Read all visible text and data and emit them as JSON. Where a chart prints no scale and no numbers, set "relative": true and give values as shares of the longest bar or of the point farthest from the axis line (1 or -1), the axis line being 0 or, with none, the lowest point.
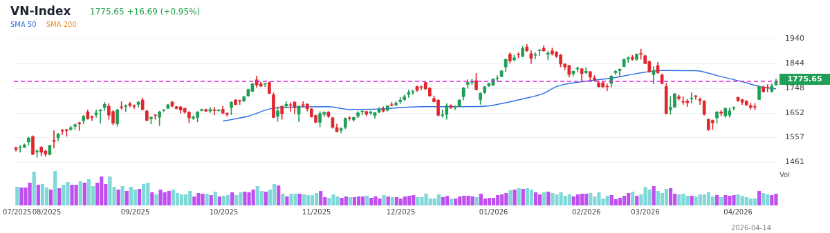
{
  "chart_data": [
    {
      "type": "candlestick",
      "title": "VN-Index",
      "subtitle": "1775.65 +16.69 (+0.95%)",
      "legend": "top left",
      "grid": "y",
      "tick_labels": "y",
      "categories": [
        null,
        null,
        null,
        null,
        null,
        null,
        null,
        null,
        null,
        null,
        null,
        null,
        null,
        null,
        null,
        null,
        null,
        null,
        null,
        null,
        null,
        null,
        null,
        null,
        null,
        null,
        null,
        null,
        null,
        null,
        null,
        null,
        null,
        null,
        null,
        null,
        null,
        null,
        null,
        null,
        null,
        null,
        null,
        null,
        null,
        null,
        null,
        null,
        null,
        null,
        null,
        null,
        null,
        null,
        null,
        null,
        null,
        null,
        null,
        null,
        null,
        null,
        null,
        null,
        null,
        null,
        null,
        null,
        null,
        null,
        null,
        null,
        null,
        null,
        null,
        null,
        null,
        null,
        null,
        null,
        null,
        null,
        null,
        null,
        null,
        null,
        null,
        null,
        null,
        null,
        null,
        null,
        null,
        null,
        null,
        null,
        null,
        null,
        null,
        null,
        null,
        null,
        null,
        null,
        null,
        null,
        null,
        null,
        null,
        null,
        null,
        null,
        null,
        null,
        null,
        null,
        null,
        null,
        null,
        null,
        null,
        null,
        null,
        null,
        null,
        null,
        null,
        null,
        null,
        null,
        null,
        null,
        null,
        null,
        null,
        null,
        null,
        null,
        null,
        null,
        null,
        null,
        null,
        null,
        null,
        null,
        null,
        null,
        null,
        null,
        null,
        null,
        null,
        null,
        null,
        null,
        null,
        null,
        null,
        null,
        null,
        null,
        null,
        null,
        null,
        null,
        null,
        null,
        null,
        null,
        null,
        null,
        null,
        null,
        null,
        null,
        null,
        null,
        null,
        null,
        null
      ],
      "colors": [
        "#e0272d",
        "#1f9e55",
        "#1f9e55",
        "#1f9e55",
        "#e0272d",
        "#1f9e55",
        "#e0272d",
        "#e0272d",
        "#1f9e55",
        "#e0272d",
        "#1f9e55",
        "#e0272d",
        "#e0272d",
        "#1f9e55",
        "#1f9e55",
        "#e0272d",
        "#1f9e55",
        "#e0272d",
        "#e0272d",
        "#1f9e55",
        "#1f9e55",
        "#1f9e55",
        "#e0272d",
        "#e0272d",
        "#1f9e55",
        "#e0272d",
        "#1f9e55",
        "#e0272d",
        "#e0272d",
        "#1f9e55",
        "#e0272d",
        "#e0272d",
        "#1f9e55",
        "#e0272d",
        "#1f9e55",
        "#1f9e55",
        "#1f9e55",
        "#e0272d",
        "#e0272d",
        "#e0272d",
        "#e0272d",
        "#e0272d",
        "#1f9e55",
        "#1f9e55",
        "#1f9e55",
        "#e0272d",
        "#1f9e55",
        "#e0272d",
        "#1f9e55",
        "#e0272d",
        "#e0272d",
        "#1f9e55",
        "#e0272d",
        "#e0272d",
        "#1f9e55",
        "#1f9e55",
        "#1f9e55",
        "#e0272d",
        "#e0272d",
        "#1f9e55",
        "#e0272d",
        "#e0272d",
        "#1f9e55",
        "#e0272d",
        "#1f9e55",
        "#e0272d",
        "#e0272d",
        "#1f9e55",
        "#e0272d",
        "#e0272d",
        "#e0272d",
        "#e0272d",
        "#1f9e55",
        "#1f9e55",
        "#e0272d",
        "#e0272d",
        "#e0272d",
        "#1f9e55",
        "#1f9e55",
        "#e0272d",
        "#1f9e55",
        "#1f9e55",
        "#1f9e55",
        "#e0272d",
        "#1f9e55",
        "#1f9e55",
        "#1f9e55",
        "#e0272d",
        "#1f9e55",
        "#e0272d",
        "#1f9e55",
        "#1f9e55",
        "#1f9e55",
        "#1f9e55",
        "#1f9e55",
        "#e0272d",
        "#e0272d",
        "#e0272d",
        "#e0272d",
        "#e0272d",
        "#e0272d",
        "#1f9e55",
        "#1f9e55",
        "#e0272d",
        "#1f9e55",
        "#1f9e55",
        "#1f9e55",
        "#1f9e55",
        "#1f9e55",
        "#e0272d",
        "#1f9e55",
        "#1f9e55",
        "#1f9e55",
        "#1f9e55",
        "#1f9e55",
        "#1f9e55",
        "#1f9e55",
        "#e0272d",
        "#1f9e55",
        "#e0272d",
        "#1f9e55",
        "#e0272d",
        "#e0272d",
        "#1f9e55",
        "#1f9e55",
        "#e0272d",
        "#1f9e55",
        "#e0272d",
        "#e0272d",
        "#e0272d",
        "#e0272d",
        "#e0272d",
        "#1f9e55",
        "#1f9e55",
        "#e0272d",
        "#1f9e55",
        "#e0272d",
        "#e0272d",
        "#e0272d",
        "#e0272d",
        "#e0272d",
        "#1f9e55",
        "#1f9e55",
        "#1f9e55",
        "#1f9e55",
        "#1f9e55",
        "#e0272d",
        "#1f9e55",
        "#e0272d",
        "#e0272d",
        "#e0272d",
        "#1f9e55",
        "#e0272d",
        "#e0272d",
        "#e0272d",
        "#1f9e55",
        "#1f9e55",
        "#e0272d",
        "#e0272d",
        "#e0272d",
        "#1f9e55",
        "#e0272d",
        "#e0272d",
        "#e0272d",
        "#e0272d",
        "#e0272d",
        "#1f9e55",
        "#e0272d",
        "#1f9e55",
        "#1f9e55",
        "#1f9e55",
        "#e0272d",
        "#e0272d",
        "#e0272d",
        "#e0272d",
        "#e0272d",
        "#1f9e55",
        "#e0272d",
        "#e0272d",
        "#1f9e55",
        "#1f9e55"
      ],
      "ohlc": [
        [
          1517,
          1521,
          1504,
          1511
        ],
        [
          1517,
          1527,
          1500,
          1520
        ],
        [
          1520,
          1533,
          1517,
          1529
        ],
        [
          1540,
          1559,
          1528,
          1555
        ],
        [
          1561,
          1564,
          1490,
          1492
        ],
        [
          1501,
          1511,
          1480,
          1505
        ],
        [
          1520,
          1522,
          1486,
          1500
        ],
        [
          1505,
          1508,
          1484,
          1493
        ],
        [
          1491,
          1528,
          1489,
          1526
        ],
        [
          1546,
          1584,
          1516,
          1542
        ],
        [
          1557,
          1574,
          1545,
          1571
        ],
        [
          1586,
          1589,
          1569,
          1582
        ],
        [
          1588,
          1590,
          1562,
          1584
        ],
        [
          1589,
          1601,
          1584,
          1596
        ],
        [
          1601,
          1610,
          1588,
          1607
        ],
        [
          1614,
          1618,
          1584,
          1610
        ],
        [
          1623,
          1644,
          1610,
          1640
        ],
        [
          1657,
          1665,
          1628,
          1630
        ],
        [
          1638,
          1642,
          1623,
          1635
        ],
        [
          1646,
          1665,
          1635,
          1653
        ],
        [
          1661,
          1666,
          1613,
          1664
        ],
        [
          1674,
          1694,
          1662,
          1686
        ],
        [
          1679,
          1689,
          1628,
          1644
        ],
        [
          1658,
          1662,
          1606,
          1613
        ],
        [
          1610,
          1668,
          1601,
          1665
        ],
        [
          1677,
          1697,
          1666,
          1673
        ],
        [
          1678,
          1685,
          1658,
          1681
        ],
        [
          1688,
          1694,
          1676,
          1682
        ],
        [
          1681,
          1685,
          1669,
          1678
        ],
        [
          1686,
          1697,
          1674,
          1695
        ],
        [
          1703,
          1711,
          1663,
          1666
        ],
        [
          1660,
          1665,
          1622,
          1624
        ],
        [
          1630,
          1638,
          1610,
          1636
        ],
        [
          1644,
          1646,
          1628,
          1643
        ],
        [
          1636,
          1660,
          1603,
          1657
        ],
        [
          1663,
          1667,
          1657,
          1665
        ],
        [
          1671,
          1687,
          1668,
          1684
        ],
        [
          1695,
          1698,
          1676,
          1679
        ],
        [
          1677,
          1679,
          1668,
          1670
        ],
        [
          1676,
          1678,
          1652,
          1664
        ],
        [
          1670,
          1672,
          1651,
          1656
        ],
        [
          1656,
          1658,
          1614,
          1634
        ],
        [
          1632,
          1642,
          1627,
          1636
        ],
        [
          1635,
          1659,
          1618,
          1657
        ],
        [
          1662,
          1668,
          1660,
          1666
        ],
        [
          1666,
          1668,
          1657,
          1660
        ],
        [
          1660,
          1675,
          1654,
          1666
        ],
        [
          1665,
          1675,
          1645,
          1662
        ],
        [
          1661,
          1666,
          1659,
          1664
        ],
        [
          1667,
          1679,
          1650,
          1652
        ],
        [
          1652,
          1653,
          1639,
          1647
        ],
        [
          1673,
          1697,
          1645,
          1695
        ],
        [
          1703,
          1705,
          1684,
          1685
        ],
        [
          1701,
          1703,
          1685,
          1699
        ],
        [
          1699,
          1718,
          1697,
          1716
        ],
        [
          1719,
          1746,
          1717,
          1744
        ],
        [
          1737,
          1768,
          1735,
          1766
        ],
        [
          1781,
          1796,
          1752,
          1761
        ],
        [
          1766,
          1773,
          1754,
          1757
        ],
        [
          1765,
          1769,
          1754,
          1767
        ],
        [
          1771,
          1773,
          1727,
          1729
        ],
        [
          1723,
          1731,
          1634,
          1635
        ],
        [
          1640,
          1677,
          1620,
          1661
        ],
        [
          1679,
          1681,
          1628,
          1650
        ],
        [
          1679,
          1697,
          1671,
          1686
        ],
        [
          1685,
          1693,
          1658,
          1682
        ],
        [
          1695,
          1697,
          1650,
          1673
        ],
        [
          1648,
          1681,
          1619,
          1679
        ],
        [
          1685,
          1697,
          1675,
          1681
        ],
        [
          1687,
          1689,
          1660,
          1669
        ],
        [
          1668,
          1670,
          1636,
          1638
        ],
        [
          1643,
          1645,
          1614,
          1616
        ],
        [
          1616,
          1658,
          1598,
          1650
        ],
        [
          1647,
          1658,
          1639,
          1655
        ],
        [
          1657,
          1658,
          1635,
          1640
        ],
        [
          1634,
          1636,
          1593,
          1597
        ],
        [
          1596,
          1610,
          1578,
          1580
        ],
        [
          1585,
          1596,
          1575,
          1592
        ],
        [
          1597,
          1634,
          1591,
          1631
        ],
        [
          1632,
          1639,
          1624,
          1631
        ],
        [
          1626,
          1637,
          1620,
          1635
        ],
        [
          1640,
          1658,
          1634,
          1653
        ],
        [
          1657,
          1661,
          1645,
          1660
        ],
        [
          1658,
          1660,
          1642,
          1648
        ],
        [
          1652,
          1660,
          1647,
          1656
        ],
        [
          1643,
          1655,
          1632,
          1654
        ],
        [
          1656,
          1674,
          1653,
          1666
        ],
        [
          1667,
          1677,
          1656,
          1660
        ],
        [
          1663,
          1682,
          1660,
          1680
        ],
        [
          1685,
          1695,
          1679,
          1682
        ],
        [
          1683,
          1697,
          1681,
          1691
        ],
        [
          1697,
          1713,
          1689,
          1702
        ],
        [
          1705,
          1723,
          1700,
          1716
        ],
        [
          1725,
          1742,
          1713,
          1732
        ],
        [
          1733,
          1742,
          1724,
          1735
        ],
        [
          1755,
          1758,
          1736,
          1741
        ],
        [
          1754,
          1758,
          1742,
          1752
        ],
        [
          1771,
          1774,
          1743,
          1746
        ],
        [
          1749,
          1752,
          1717,
          1719
        ],
        [
          1709,
          1719,
          1695,
          1697
        ],
        [
          1702,
          1705,
          1640,
          1644
        ],
        [
          1643,
          1665,
          1636,
          1644
        ],
        [
          1647,
          1689,
          1628,
          1681
        ],
        [
          1681,
          1685,
          1670,
          1673
        ],
        [
          1675,
          1681,
          1665,
          1677
        ],
        [
          1678,
          1705,
          1676,
          1703
        ],
        [
          1716,
          1752,
          1703,
          1750
        ],
        [
          1764,
          1782,
          1749,
          1771
        ],
        [
          1772,
          1784,
          1763,
          1775
        ],
        [
          1778,
          1806,
          1742,
          1743
        ],
        [
          1705,
          1732,
          1686,
          1729
        ],
        [
          1732,
          1756,
          1728,
          1754
        ],
        [
          1759,
          1769,
          1754,
          1767
        ],
        [
          1760,
          1786,
          1759,
          1784
        ],
        [
          1786,
          1798,
          1774,
          1788
        ],
        [
          1794,
          1818,
          1793,
          1816
        ],
        [
          1831,
          1863,
          1814,
          1861
        ],
        [
          1881,
          1887,
          1847,
          1855
        ],
        [
          1859,
          1877,
          1855,
          1867
        ],
        [
          1880,
          1887,
          1867,
          1878
        ],
        [
          1873,
          1912,
          1870,
          1904
        ],
        [
          1909,
          1919,
          1891,
          1894
        ],
        [
          1883,
          1895,
          1844,
          1865
        ],
        [
          1877,
          1887,
          1863,
          1879
        ],
        [
          1895,
          1900,
          1875,
          1897
        ],
        [
          1904,
          1914,
          1891,
          1894
        ],
        [
          1880,
          1893,
          1859,
          1885
        ],
        [
          1894,
          1905,
          1877,
          1883
        ],
        [
          1889,
          1892,
          1868,
          1873
        ],
        [
          1878,
          1881,
          1831,
          1843
        ],
        [
          1843,
          1845,
          1820,
          1831
        ],
        [
          1837,
          1839,
          1792,
          1802
        ],
        [
          1805,
          1816,
          1796,
          1814.5
        ],
        [
          1823,
          1832,
          1812,
          1827
        ],
        [
          1824,
          1826,
          1776,
          1806
        ],
        [
          1809,
          1828,
          1805,
          1814.5
        ],
        [
          1813,
          1815,
          1781,
          1792
        ],
        [
          1789,
          1798,
          1776,
          1782
        ],
        [
          1770,
          1778,
          1752,
          1755
        ],
        [
          1770,
          1772,
          1750,
          1754
        ],
        [
          1755,
          1766,
          1739,
          1754
        ],
        [
          1767,
          1798,
          1752,
          1796
        ],
        [
          1809,
          1818,
          1802,
          1814.5
        ],
        [
          1817,
          1825,
          1794,
          1823
        ],
        [
          1833,
          1863,
          1831,
          1861
        ],
        [
          1863,
          1871,
          1849,
          1867
        ],
        [
          1869,
          1877,
          1857,
          1861
        ],
        [
          1861,
          1883,
          1857,
          1881
        ],
        [
          1883,
          1901,
          1861,
          1881
        ],
        [
          1875,
          1877,
          1843,
          1845
        ],
        [
          1853,
          1855,
          1810,
          1813
        ],
        [
          1802,
          1833,
          1766,
          1817
        ],
        [
          1836,
          1849,
          1806,
          1809
        ],
        [
          1800,
          1805,
          1765,
          1767
        ],
        [
          1755,
          1768,
          1648,
          1651
        ],
        [
          1665,
          1717,
          1648,
          1675
        ],
        [
          1675,
          1729,
          1674,
          1727
        ],
        [
          1716,
          1723,
          1702,
          1709
        ],
        [
          1697,
          1716,
          1686,
          1695
        ],
        [
          1699,
          1705,
          1678,
          1693
        ],
        [
          1708,
          1732,
          1691,
          1709
        ],
        [
          1719,
          1721,
          1705,
          1716
        ],
        [
          1705,
          1712,
          1685,
          1701
        ],
        [
          1699,
          1701,
          1644,
          1647
        ],
        [
          1628,
          1630,
          1584,
          1588
        ],
        [
          1624,
          1626,
          1589,
          1614
        ],
        [
          1634,
          1659,
          1612,
          1657
        ],
        [
          1657,
          1663,
          1642,
          1652
        ],
        [
          1642,
          1673,
          1636,
          1671
        ],
        [
          1644,
          1673,
          1636,
          1661
        ],
        [
          1671,
          1677,
          1663,
          1674
        ],
        [
          1713,
          1715,
          1697,
          1701
        ],
        [
          1704,
          1706,
          1685,
          1695
        ],
        [
          1699,
          1701,
          1681,
          1683
        ],
        [
          1681,
          1691,
          1667,
          1674
        ],
        [
          1677,
          1689,
          1665,
          1675
        ],
        [
          1705,
          1757,
          1704,
          1755
        ],
        [
          1754,
          1758,
          1733.5,
          1735
        ],
        [
          1752,
          1763,
          1735,
          1750
        ],
        [
          1737,
          1766,
          1732,
          1757
        ],
        [
          1762,
          1784,
          1758,
          1775.65
        ]
      ],
      "series": [
        {
          "name": "SMA 50",
          "type": "line",
          "color": "#2f6fe4",
          "values": [
            null,
            null,
            null,
            null,
            null,
            null,
            null,
            null,
            null,
            null,
            null,
            null,
            null,
            null,
            null,
            null,
            null,
            null,
            null,
            null,
            null,
            null,
            null,
            null,
            null,
            null,
            null,
            null,
            null,
            null,
            null,
            null,
            null,
            null,
            null,
            null,
            null,
            null,
            null,
            null,
            null,
            null,
            null,
            null,
            null,
            null,
            null,
            null,
            null,
            1621,
            null,
            null,
            null,
            null,
            null,
            1640,
            null,
            null,
            null,
            null,
            1668,
            null,
            null,
            1674,
            null,
            null,
            null,
            null,
            null,
            null,
            null,
            null,
            null,
            null,
            1677,
            null,
            null,
            null,
            null,
            1666,
            null,
            null,
            null,
            null,
            null,
            null,
            1668,
            null,
            null,
            null,
            null,
            null,
            null,
            null,
            null,
            null,
            1677,
            null,
            null,
            null,
            null,
            null,
            null,
            null,
            null,
            null,
            null,
            null,
            null,
            null,
            1678,
            null,
            null,
            null,
            null,
            1689,
            null,
            null,
            null,
            null,
            1707,
            null,
            null,
            null,
            null,
            1729,
            null,
            null,
            1755,
            null,
            null,
            null,
            null,
            null,
            null,
            null,
            1778,
            null,
            null,
            null,
            null,
            null,
            1790,
            null,
            null,
            null,
            null,
            1806,
            null,
            null,
            null,
            null,
            null,
            1818,
            null,
            null,
            null,
            null,
            null,
            null,
            null,
            1817,
            null,
            null,
            null,
            null,
            1798,
            null,
            null,
            null,
            null,
            null,
            1774,
            null,
            null,
            null,
            null,
            1752,
            null,
            null,
            1747
          ]
        },
        {
          "name": "SMA 200",
          "type": "line",
          "color": "#f08a2c",
          "values": [
            null,
            null,
            null,
            null,
            null,
            null,
            null,
            null,
            null,
            null,
            null,
            null,
            null,
            null,
            null,
            null,
            null,
            null,
            null,
            null,
            null,
            null,
            null,
            null,
            null,
            null,
            null,
            null,
            null,
            null,
            null,
            null,
            null,
            null,
            null,
            null,
            null,
            null,
            null,
            null,
            null,
            null,
            null,
            null,
            null,
            null,
            null,
            null,
            null,
            null,
            null,
            null,
            null,
            null,
            null,
            null,
            null,
            null,
            null,
            null,
            null,
            null,
            null,
            null,
            null,
            null,
            null,
            null,
            null,
            null,
            null,
            null,
            null,
            null,
            null,
            null,
            null,
            null,
            null,
            null,
            null,
            null,
            null,
            null,
            null,
            null,
            null,
            null,
            null,
            null,
            null,
            null,
            null,
            null,
            null,
            null,
            null,
            null,
            null,
            null,
            null,
            null,
            null,
            null,
            null,
            null,
            null,
            null,
            null,
            null,
            null,
            null,
            null,
            null,
            null,
            null,
            null,
            null,
            null,
            null,
            null,
            null,
            null,
            null,
            null,
            null,
            null,
            null,
            null,
            null,
            null,
            null,
            null,
            null,
            null,
            null,
            null,
            null,
            null,
            null,
            null,
            null,
            null,
            null,
            null,
            null,
            null,
            null,
            null,
            null,
            null,
            null,
            null,
            null,
            null,
            null,
            null,
            null,
            null,
            null,
            null,
            null,
            null,
            null,
            null,
            null,
            null,
            null,
            null,
            null,
            null,
            null,
            null,
            null,
            null,
            null,
            null,
            null,
            null,
            null,
            null
          ]
        }
      ],
      "ylim": [
        1461,
        1940
      ],
      "yticks": [
        1461,
        1557,
        1652,
        1748,
        1844,
        1940
      ],
      "ref_lines": [
        {
          "axis": "y",
          "value": 1775.65,
          "label": "1775.65",
          "color": "#e020e0",
          "line_style": "dashed"
        }
      ]
    },
    {
      "type": "bar",
      "relative": true,
      "ylabel": "Vol",
      "annotations": [
        "2026-04-14"
      ],
      "categories": [
        "07/2025",
        null,
        null,
        null,
        null,
        null,
        null,
        "08/2025",
        null,
        null,
        null,
        null,
        null,
        null,
        null,
        null,
        null,
        null,
        null,
        null,
        null,
        null,
        null,
        null,
        null,
        null,
        null,
        null,
        "09/2025",
        null,
        null,
        null,
        null,
        null,
        null,
        null,
        null,
        null,
        null,
        null,
        null,
        null,
        null,
        null,
        null,
        null,
        null,
        null,
        null,
        "10/2025",
        null,
        null,
        null,
        null,
        null,
        null,
        null,
        null,
        null,
        null,
        null,
        null,
        null,
        null,
        null,
        null,
        null,
        null,
        null,
        null,
        null,
        "11/2025",
        null,
        null,
        null,
        null,
        null,
        null,
        null,
        null,
        null,
        null,
        null,
        null,
        null,
        null,
        null,
        null,
        null,
        null,
        null,
        "12/2025",
        null,
        null,
        null,
        null,
        null,
        null,
        null,
        null,
        null,
        null,
        null,
        null,
        null,
        null,
        null,
        null,
        null,
        null,
        null,
        null,
        null,
        "01/2026",
        null,
        null,
        null,
        null,
        null,
        null,
        null,
        null,
        null,
        null,
        null,
        null,
        null,
        null,
        null,
        null,
        null,
        null,
        null,
        null,
        null,
        "02/2026",
        null,
        null,
        null,
        null,
        null,
        null,
        null,
        null,
        null,
        null,
        null,
        null,
        null,
        "03/2026",
        null,
        null,
        null,
        null,
        null,
        null,
        null,
        null,
        null,
        null,
        null,
        null,
        null,
        null,
        null,
        null,
        null,
        null,
        null,
        null,
        null,
        "04/2026",
        null,
        null,
        null,
        null,
        null,
        null,
        null,
        null,
        null
      ],
      "values": [
        0.54,
        0.52,
        0.52,
        0.66,
        0.98,
        0.6,
        0.62,
        0.52,
        0.46,
        1,
        0.5,
        0.6,
        0.68,
        0.6,
        0.6,
        0.7,
        0.66,
        0.76,
        0.56,
        0.66,
        0.84,
        0.62,
        0.84,
        0.54,
        0.46,
        0.56,
        0.42,
        0.54,
        0.46,
        0.48,
        0.62,
        0.66,
        0.38,
        0.32,
        0.46,
        0.38,
        0.42,
        0.46,
        0.36,
        0.32,
        0.32,
        0.42,
        0.26,
        0.36,
        0.34,
        0.34,
        0.3,
        0.4,
        0.26,
        0.28,
        0.3,
        0.38,
        0.3,
        0.38,
        0.4,
        0.38,
        0.46,
        0.56,
        0.42,
        0.4,
        0.46,
        0.62,
        0.58,
        0.34,
        0.26,
        0.34,
        0.34,
        0.34,
        0.32,
        0.3,
        0.3,
        0.36,
        0.42,
        0.24,
        0.22,
        0.32,
        0.26,
        0.22,
        0.26,
        0.24,
        0.24,
        0.26,
        0.26,
        0.28,
        0.22,
        0.26,
        0.2,
        0.3,
        0.26,
        0.24,
        0.24,
        0.2,
        0.26,
        0.28,
        0.3,
        0.24,
        0.24,
        0.34,
        0.2,
        0.2,
        0.32,
        0.24,
        0.28,
        0.2,
        0.2,
        0.26,
        0.28,
        0.28,
        0.26,
        0.24,
        0.34,
        0.2,
        0.22,
        0.22,
        0.3,
        0.32,
        0.36,
        0.44,
        0.46,
        0.5,
        0.48,
        0.5,
        0.46,
        0.38,
        0.32,
        0.38,
        0.4,
        0.36,
        0.32,
        0.38,
        0.28,
        0.32,
        0.26,
        0.32,
        0.34,
        0.34,
        0.36,
        0.26,
        0.38,
        0.2,
        0.28,
        0.3,
        0.18,
        0.22,
        0.28,
        0.36,
        0.4,
        0.28,
        0.32,
        0.54,
        0.46,
        0.56,
        0.42,
        0.36,
        0.48,
        0.5,
        0.34,
        0.32,
        0.34,
        0.28,
        0.28,
        0.26,
        0.32,
        0.32,
        0.38,
        0.26,
        0.3,
        0.24,
        0.3,
        0.28,
        0.3,
        0.32,
        0.28,
        0.24,
        0.2,
        0.2,
        0.42,
        0.36,
        0.32,
        0.3,
        0.34
      ],
      "colors": [
        "#80d8d8",
        "#c04ff0",
        "#c04ff0",
        "#c04ff0",
        "#80d8d8",
        "#c04ff0",
        "#80d8d8",
        "#80d8d8",
        "#c04ff0",
        "#80d8d8",
        "#c04ff0",
        "#80d8d8",
        "#80d8d8",
        "#c04ff0",
        "#c04ff0",
        "#80d8d8",
        "#c04ff0",
        "#80d8d8",
        "#80d8d8",
        "#c04ff0",
        "#c04ff0",
        "#c04ff0",
        "#80d8d8",
        "#80d8d8",
        "#c04ff0",
        "#80d8d8",
        "#c04ff0",
        "#80d8d8",
        "#80d8d8",
        "#c04ff0",
        "#80d8d8",
        "#80d8d8",
        "#c04ff0",
        "#80d8d8",
        "#c04ff0",
        "#c04ff0",
        "#c04ff0",
        "#80d8d8",
        "#80d8d8",
        "#80d8d8",
        "#80d8d8",
        "#80d8d8",
        "#c04ff0",
        "#c04ff0",
        "#c04ff0",
        "#80d8d8",
        "#c04ff0",
        "#80d8d8",
        "#c04ff0",
        "#80d8d8",
        "#80d8d8",
        "#c04ff0",
        "#80d8d8",
        "#80d8d8",
        "#c04ff0",
        "#c04ff0",
        "#c04ff0",
        "#80d8d8",
        "#80d8d8",
        "#c04ff0",
        "#80d8d8",
        "#80d8d8",
        "#c04ff0",
        "#80d8d8",
        "#c04ff0",
        "#80d8d8",
        "#80d8d8",
        "#c04ff0",
        "#80d8d8",
        "#80d8d8",
        "#80d8d8",
        "#80d8d8",
        "#c04ff0",
        "#c04ff0",
        "#80d8d8",
        "#80d8d8",
        "#80d8d8",
        "#c04ff0",
        "#c04ff0",
        "#80d8d8",
        "#c04ff0",
        "#c04ff0",
        "#c04ff0",
        "#80d8d8",
        "#c04ff0",
        "#c04ff0",
        "#c04ff0",
        "#80d8d8",
        "#c04ff0",
        "#80d8d8",
        "#c04ff0",
        "#c04ff0",
        "#c04ff0",
        "#c04ff0",
        "#c04ff0",
        "#80d8d8",
        "#80d8d8",
        "#80d8d8",
        "#80d8d8",
        "#80d8d8",
        "#80d8d8",
        "#c04ff0",
        "#c04ff0",
        "#80d8d8",
        "#c04ff0",
        "#c04ff0",
        "#c04ff0",
        "#c04ff0",
        "#c04ff0",
        "#80d8d8",
        "#c04ff0",
        "#c04ff0",
        "#c04ff0",
        "#c04ff0",
        "#c04ff0",
        "#c04ff0",
        "#c04ff0",
        "#80d8d8",
        "#c04ff0",
        "#80d8d8",
        "#c04ff0",
        "#80d8d8",
        "#80d8d8",
        "#c04ff0",
        "#c04ff0",
        "#80d8d8",
        "#c04ff0",
        "#80d8d8",
        "#80d8d8",
        "#80d8d8",
        "#80d8d8",
        "#80d8d8",
        "#c04ff0",
        "#c04ff0",
        "#c04ff0",
        "#c04ff0",
        "#80d8d8",
        "#80d8d8",
        "#80d8d8",
        "#80d8d8",
        "#80d8d8",
        "#c04ff0",
        "#c04ff0",
        "#c04ff0",
        "#c04ff0",
        "#c04ff0",
        "#80d8d8",
        "#c04ff0",
        "#80d8d8",
        "#80d8d8",
        "#80d8d8",
        "#c04ff0",
        "#80d8d8",
        "#80d8d8",
        "#80d8d8",
        "#c04ff0",
        "#c04ff0",
        "#80d8d8",
        "#80d8d8",
        "#80d8d8",
        "#c04ff0",
        "#80d8d8",
        "#80d8d8",
        "#80d8d8",
        "#80d8d8",
        "#80d8d8",
        "#c04ff0",
        "#80d8d8",
        "#c04ff0",
        "#c04ff0",
        "#c04ff0",
        "#80d8d8",
        "#80d8d8",
        "#80d8d8",
        "#80d8d8",
        "#80d8d8",
        "#c04ff0",
        "#80d8d8",
        "#80d8d8",
        "#c04ff0",
        "#c04ff0"
      ]
    }
  ]
}
